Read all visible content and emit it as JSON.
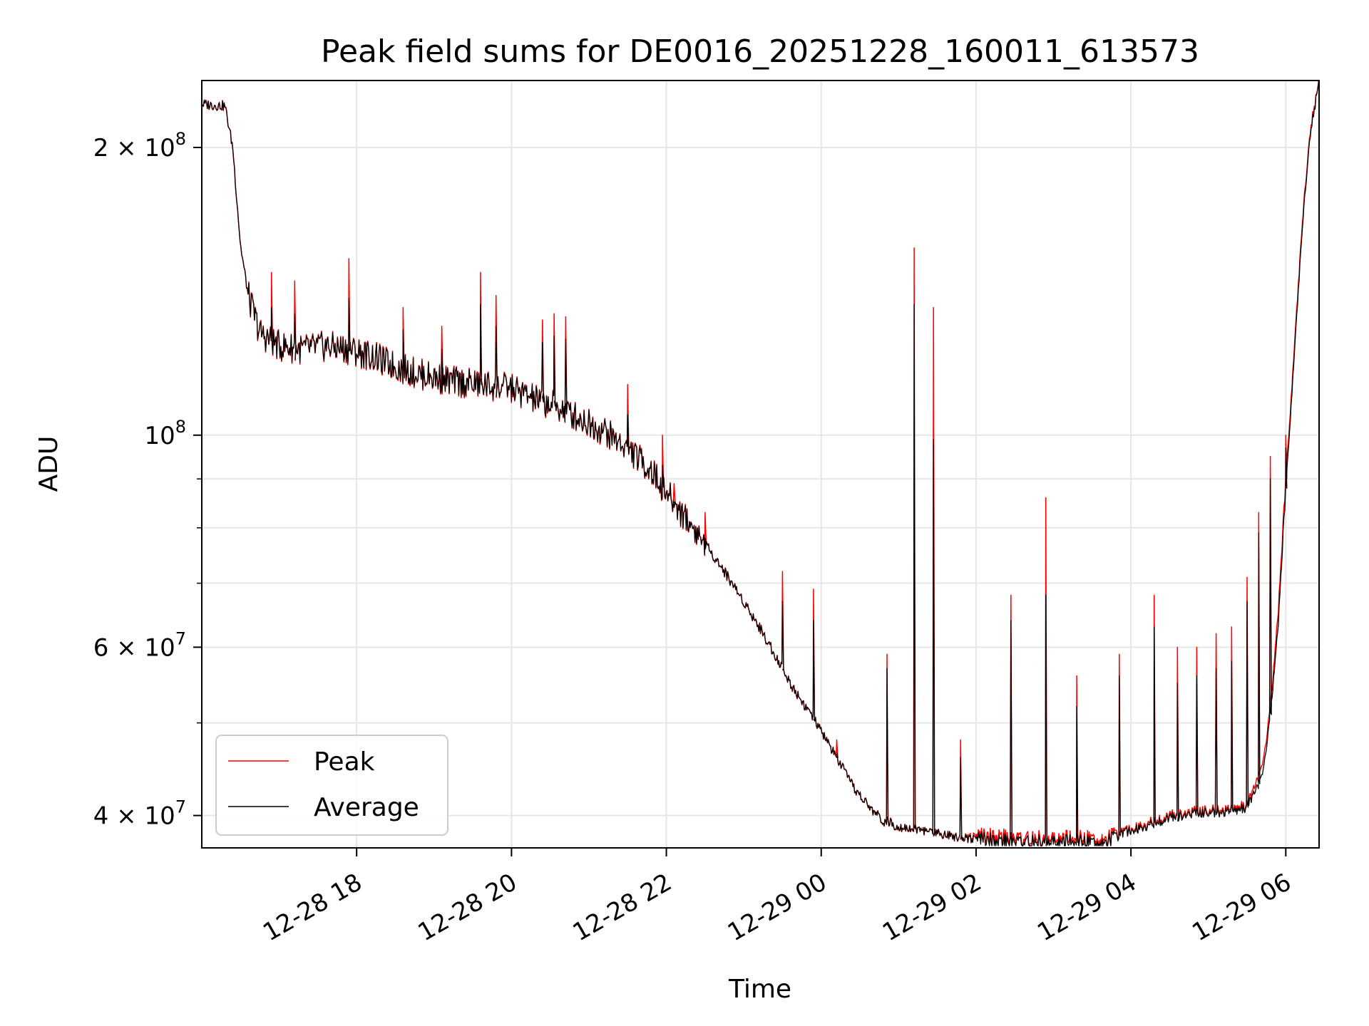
{
  "chart_data": {
    "type": "line",
    "title": "Peak field sums for DE0016_20251228_160011_613573",
    "xlabel": "Time",
    "ylabel": "ADU",
    "yscale": "log",
    "ylim": [
      37000000,
      235000000
    ],
    "xlim_hours": [
      16.0,
      30.43
    ],
    "grid": true,
    "legend_position": "lower-left",
    "x_ticks": [
      {
        "hour": 18,
        "label": "12-28 18"
      },
      {
        "hour": 20,
        "label": "12-28 20"
      },
      {
        "hour": 22,
        "label": "12-28 22"
      },
      {
        "hour": 24,
        "label": "12-29 00"
      },
      {
        "hour": 26,
        "label": "12-29 02"
      },
      {
        "hour": 28,
        "label": "12-29 04"
      },
      {
        "hour": 30,
        "label": "12-29 06"
      }
    ],
    "y_major_ticks": [
      {
        "value": 40000000,
        "mantissa": "4",
        "exp": "7"
      },
      {
        "value": 60000000,
        "mantissa": "6",
        "exp": "7"
      },
      {
        "value": 100000000,
        "mantissa": "",
        "exp": "8"
      },
      {
        "value": 200000000,
        "mantissa": "2",
        "exp": "8"
      }
    ],
    "y_minor_ticks": [
      50000000,
      70000000,
      80000000,
      90000000
    ],
    "series": [
      {
        "name": "Peak",
        "color": "#ff0000",
        "points": [
          [
            16.0,
            222000000
          ],
          [
            16.3,
            221000000
          ],
          [
            16.4,
            200000000
          ],
          [
            16.5,
            158000000
          ],
          [
            16.6,
            140000000
          ],
          [
            16.75,
            128000000
          ],
          [
            17.0,
            124000000
          ],
          [
            17.3,
            123000000
          ],
          [
            17.6,
            124000000
          ],
          [
            17.9,
            123000000
          ],
          [
            18.2,
            121000000
          ],
          [
            18.5,
            118000000
          ],
          [
            18.8,
            116000000
          ],
          [
            19.2,
            114000000
          ],
          [
            19.6,
            113000000
          ],
          [
            20.0,
            112000000
          ],
          [
            20.3,
            109000000
          ],
          [
            20.6,
            107000000
          ],
          [
            20.9,
            104000000
          ],
          [
            21.2,
            101000000
          ],
          [
            21.5,
            97000000
          ],
          [
            21.8,
            92000000
          ],
          [
            22.0,
            87000000
          ],
          [
            22.2,
            83000000
          ],
          [
            22.4,
            79000000
          ],
          [
            22.6,
            75000000
          ],
          [
            22.8,
            71000000
          ],
          [
            23.0,
            67000000
          ],
          [
            23.2,
            63000000
          ],
          [
            23.4,
            59000000
          ],
          [
            23.6,
            55000000
          ],
          [
            23.8,
            52000000
          ],
          [
            24.0,
            49000000
          ],
          [
            24.2,
            46000000
          ],
          [
            24.4,
            43000000
          ],
          [
            24.6,
            41000000
          ],
          [
            24.8,
            39500000
          ],
          [
            25.0,
            39000000
          ],
          [
            25.4,
            38500000
          ],
          [
            25.8,
            38000000
          ],
          [
            26.2,
            38000000
          ],
          [
            26.6,
            37800000
          ],
          [
            27.0,
            37800000
          ],
          [
            27.4,
            37800000
          ],
          [
            27.7,
            37800000
          ],
          [
            27.95,
            38600000
          ],
          [
            28.2,
            39200000
          ],
          [
            28.5,
            40000000
          ],
          [
            28.9,
            40500000
          ],
          [
            29.2,
            40500000
          ],
          [
            29.5,
            41000000
          ],
          [
            29.7,
            45000000
          ],
          [
            29.8,
            52000000
          ],
          [
            29.9,
            65000000
          ],
          [
            30.0,
            90000000
          ],
          [
            30.1,
            120000000
          ],
          [
            30.2,
            160000000
          ],
          [
            30.3,
            205000000
          ],
          [
            30.43,
            235000000
          ]
        ],
        "spikes": [
          [
            16.9,
            148000000
          ],
          [
            17.2,
            145000000
          ],
          [
            17.9,
            153000000
          ],
          [
            18.6,
            136000000
          ],
          [
            19.1,
            130000000
          ],
          [
            19.6,
            148000000
          ],
          [
            19.8,
            140000000
          ],
          [
            20.4,
            132000000
          ],
          [
            20.55,
            134000000
          ],
          [
            20.7,
            133000000
          ],
          [
            21.5,
            113000000
          ],
          [
            21.95,
            100000000
          ],
          [
            22.1,
            89000000
          ],
          [
            22.5,
            83000000
          ],
          [
            23.5,
            72000000
          ],
          [
            23.9,
            69000000
          ],
          [
            24.2,
            48000000
          ],
          [
            24.85,
            59000000
          ],
          [
            25.2,
            157000000
          ],
          [
            25.45,
            136000000
          ],
          [
            25.8,
            48000000
          ],
          [
            26.45,
            68000000
          ],
          [
            26.9,
            86000000
          ],
          [
            27.3,
            56000000
          ],
          [
            27.85,
            59000000
          ],
          [
            28.3,
            68000000
          ],
          [
            28.6,
            60000000
          ],
          [
            28.85,
            60000000
          ],
          [
            29.1,
            62000000
          ],
          [
            29.3,
            63000000
          ],
          [
            29.5,
            71000000
          ],
          [
            29.65,
            83000000
          ],
          [
            29.8,
            95000000
          ],
          [
            30.0,
            100000000
          ]
        ]
      },
      {
        "name": "Average",
        "color": "#000000",
        "points": [
          [
            16.0,
            222000000
          ],
          [
            16.3,
            221000000
          ],
          [
            16.4,
            200000000
          ],
          [
            16.5,
            158000000
          ],
          [
            16.6,
            140000000
          ],
          [
            16.75,
            128000000
          ],
          [
            17.0,
            124000000
          ],
          [
            17.3,
            123000000
          ],
          [
            17.6,
            124000000
          ],
          [
            17.9,
            123000000
          ],
          [
            18.2,
            121000000
          ],
          [
            18.5,
            118000000
          ],
          [
            18.8,
            116000000
          ],
          [
            19.2,
            114000000
          ],
          [
            19.6,
            113000000
          ],
          [
            20.0,
            112000000
          ],
          [
            20.3,
            109000000
          ],
          [
            20.6,
            107000000
          ],
          [
            20.9,
            104000000
          ],
          [
            21.2,
            101000000
          ],
          [
            21.5,
            97000000
          ],
          [
            21.8,
            92000000
          ],
          [
            22.0,
            87000000
          ],
          [
            22.2,
            83000000
          ],
          [
            22.4,
            79000000
          ],
          [
            22.6,
            75000000
          ],
          [
            22.8,
            71000000
          ],
          [
            23.0,
            67000000
          ],
          [
            23.2,
            63000000
          ],
          [
            23.4,
            59000000
          ],
          [
            23.6,
            55000000
          ],
          [
            23.8,
            52000000
          ],
          [
            24.0,
            49000000
          ],
          [
            24.2,
            46000000
          ],
          [
            24.4,
            43000000
          ],
          [
            24.6,
            41000000
          ],
          [
            24.8,
            39500000
          ],
          [
            25.0,
            39000000
          ],
          [
            25.4,
            38500000
          ],
          [
            25.8,
            38000000
          ],
          [
            26.2,
            37600000
          ],
          [
            26.6,
            37500000
          ],
          [
            27.0,
            37500000
          ],
          [
            27.4,
            37500000
          ],
          [
            27.7,
            37500000
          ],
          [
            27.95,
            38500000
          ],
          [
            28.2,
            39000000
          ],
          [
            28.5,
            39800000
          ],
          [
            28.9,
            40300000
          ],
          [
            29.2,
            40300000
          ],
          [
            29.5,
            40800000
          ],
          [
            29.7,
            44000000
          ],
          [
            29.8,
            51000000
          ],
          [
            29.9,
            63000000
          ],
          [
            30.0,
            88000000
          ],
          [
            30.1,
            118000000
          ],
          [
            30.2,
            158000000
          ],
          [
            30.3,
            203000000
          ],
          [
            30.43,
            235000000
          ]
        ],
        "spikes": [
          [
            16.9,
            136000000
          ],
          [
            17.2,
            134000000
          ],
          [
            17.9,
            139000000
          ],
          [
            18.6,
            129000000
          ],
          [
            19.1,
            123000000
          ],
          [
            19.6,
            137000000
          ],
          [
            19.8,
            130000000
          ],
          [
            20.4,
            125000000
          ],
          [
            20.55,
            127000000
          ],
          [
            20.7,
            126000000
          ],
          [
            21.5,
            105000000
          ],
          [
            21.95,
            93000000
          ],
          [
            22.1,
            84000000
          ],
          [
            22.5,
            78000000
          ],
          [
            23.5,
            67000000
          ],
          [
            23.9,
            64000000
          ],
          [
            24.2,
            46000000
          ],
          [
            24.85,
            57000000
          ],
          [
            25.2,
            137000000
          ],
          [
            25.45,
            99000000
          ],
          [
            25.8,
            46000000
          ],
          [
            26.45,
            64000000
          ],
          [
            26.9,
            68000000
          ],
          [
            27.3,
            52000000
          ],
          [
            27.85,
            56000000
          ],
          [
            28.3,
            63000000
          ],
          [
            28.6,
            55000000
          ],
          [
            28.85,
            56000000
          ],
          [
            29.1,
            57000000
          ],
          [
            29.3,
            58000000
          ],
          [
            29.5,
            67000000
          ],
          [
            29.65,
            79000000
          ],
          [
            29.8,
            90000000
          ],
          [
            30.0,
            97000000
          ]
        ]
      }
    ]
  }
}
